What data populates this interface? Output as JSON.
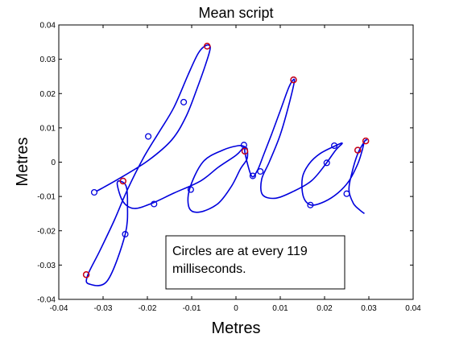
{
  "chart_data": {
    "type": "line",
    "title": "Mean script",
    "xlabel": "Metres",
    "ylabel": "Metres",
    "xlim": [
      -0.04,
      0.04
    ],
    "ylim": [
      -0.04,
      0.04
    ],
    "grid": false,
    "xticks": [
      "-0.04",
      "-0.03",
      "-0.02",
      "-0.01",
      "0",
      "0.01",
      "0.02",
      "0.03",
      "0.04"
    ],
    "yticks": [
      "-0.04",
      "-0.03",
      "-0.02",
      "-0.01",
      "0",
      "0.01",
      "0.02",
      "0.03",
      "0.04"
    ],
    "colors": {
      "trace": "#0000dd",
      "marker": "#0000dd",
      "highlight": "#dd0000"
    },
    "annotation": {
      "line1": "Circles are at every 119",
      "line2": "milliseconds."
    },
    "series": [
      {
        "points": [
          [
            -0.0315,
            -0.0085
          ],
          [
            -0.026,
            -0.0045
          ],
          [
            -0.0198,
            0.0005
          ],
          [
            -0.0145,
            0.0065
          ],
          [
            -0.0112,
            0.0135
          ],
          [
            -0.0085,
            0.0225
          ],
          [
            -0.0066,
            0.0295
          ],
          [
            -0.0058,
            0.0335
          ],
          [
            -0.0068,
            0.034
          ],
          [
            -0.0085,
            0.0318
          ],
          [
            -0.0108,
            0.0255
          ],
          [
            -0.014,
            0.016
          ],
          [
            -0.0175,
            0.0085
          ],
          [
            -0.021,
            0.001
          ],
          [
            -0.0245,
            -0.008
          ],
          [
            -0.0275,
            -0.017
          ],
          [
            -0.0308,
            -0.026
          ],
          [
            -0.0335,
            -0.033
          ],
          [
            -0.0332,
            -0.0355
          ],
          [
            -0.029,
            -0.0345
          ],
          [
            -0.025,
            -0.021
          ],
          [
            -0.0245,
            -0.012
          ],
          [
            -0.0248,
            -0.007
          ],
          [
            -0.0262,
            -0.0055
          ],
          [
            -0.0268,
            -0.0065
          ],
          [
            -0.0255,
            -0.0115
          ],
          [
            -0.023,
            -0.0135
          ],
          [
            -0.019,
            -0.012
          ],
          [
            -0.014,
            -0.009
          ],
          [
            -0.008,
            -0.0055
          ],
          [
            -0.004,
            -0.0015
          ],
          [
            0.0,
            0.002
          ],
          [
            0.0015,
            0.004
          ],
          [
            0.002,
            0.0045
          ],
          [
            0.0005,
            0.0048
          ],
          [
            -0.003,
            0.0035
          ],
          [
            -0.0075,
            0.0
          ],
          [
            -0.0105,
            -0.008
          ],
          [
            -0.0105,
            -0.0135
          ],
          [
            -0.008,
            -0.0145
          ],
          [
            -0.004,
            -0.012
          ],
          [
            -0.001,
            -0.007
          ],
          [
            0.001,
            -0.002
          ],
          [
            0.0025,
            0.001
          ],
          [
            0.0025,
            0.004
          ],
          [
            0.002,
            0.003
          ],
          [
            0.0035,
            -0.004
          ],
          [
            0.0048,
            -0.0025
          ],
          [
            0.0062,
            0.002
          ],
          [
            0.008,
            0.008
          ],
          [
            0.01,
            0.015
          ],
          [
            0.012,
            0.022
          ],
          [
            0.0132,
            0.024
          ],
          [
            0.0122,
            0.018
          ],
          [
            0.01,
            0.008
          ],
          [
            0.0075,
            0.0
          ],
          [
            0.0058,
            -0.005
          ],
          [
            0.006,
            -0.0095
          ],
          [
            0.009,
            -0.0105
          ],
          [
            0.013,
            -0.0085
          ],
          [
            0.017,
            -0.0055
          ],
          [
            0.02,
            -0.001
          ],
          [
            0.0225,
            0.0035
          ],
          [
            0.024,
            0.0055
          ],
          [
            0.0225,
            0.0048
          ],
          [
            0.019,
            0.0025
          ],
          [
            0.0165,
            -0.0005
          ],
          [
            0.015,
            -0.0045
          ],
          [
            0.0152,
            -0.01
          ],
          [
            0.017,
            -0.0125
          ],
          [
            0.02,
            -0.0115
          ],
          [
            0.023,
            -0.009
          ],
          [
            0.0255,
            -0.0055
          ],
          [
            0.0275,
            -0.0005
          ],
          [
            0.0285,
            0.0035
          ],
          [
            0.029,
            0.006
          ],
          [
            0.0295,
            0.0065
          ],
          [
            0.029,
            0.006
          ],
          [
            0.0275,
            0.0025
          ],
          [
            0.0262,
            -0.003
          ],
          [
            0.0255,
            -0.008
          ],
          [
            0.0265,
            -0.012
          ],
          [
            0.028,
            -0.014
          ],
          [
            0.029,
            -0.015
          ]
        ]
      }
    ],
    "markers": [
      [
        -0.032,
        -0.0088
      ],
      [
        -0.0255,
        -0.0055
      ],
      [
        -0.0198,
        0.0075
      ],
      [
        -0.0118,
        0.0175
      ],
      [
        -0.0065,
        0.0338
      ],
      [
        -0.025,
        -0.021
      ],
      [
        -0.0185,
        -0.0122
      ],
      [
        -0.0102,
        -0.008
      ],
      [
        -0.0338,
        -0.0328
      ],
      [
        0.0018,
        0.005
      ],
      [
        0.002,
        0.0032
      ],
      [
        0.0038,
        -0.004
      ],
      [
        0.0055,
        -0.0027
      ],
      [
        0.013,
        0.024
      ],
      [
        0.0168,
        -0.0125
      ],
      [
        0.0205,
        -0.0002
      ],
      [
        0.0222,
        0.0048
      ],
      [
        0.025,
        -0.0092
      ],
      [
        0.0275,
        0.0035
      ],
      [
        0.0293,
        0.0062
      ]
    ],
    "highlighted_markers": [
      [
        -0.0065,
        0.0338
      ],
      [
        -0.0255,
        -0.0055
      ],
      [
        -0.0338,
        -0.0328
      ],
      [
        0.002,
        0.0032
      ],
      [
        0.013,
        0.024
      ],
      [
        0.0275,
        0.0035
      ],
      [
        0.0293,
        0.0062
      ]
    ]
  }
}
